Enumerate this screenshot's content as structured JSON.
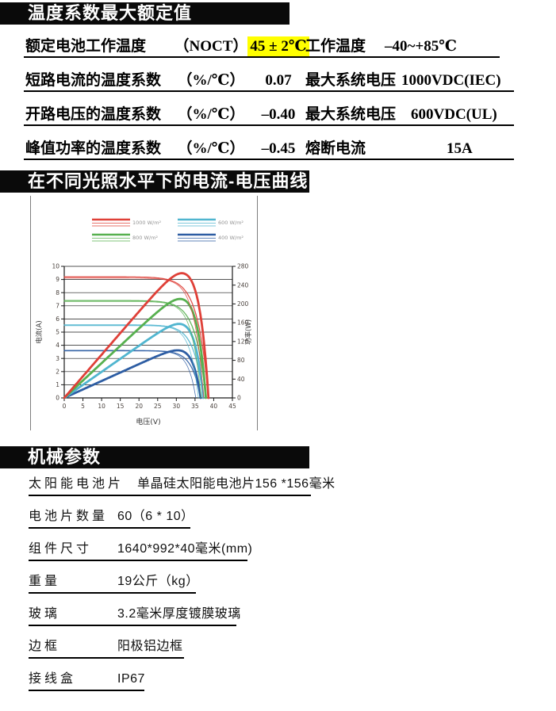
{
  "sections": {
    "ratings": {
      "title": "温度系数最大额定值",
      "rows": [
        {
          "label": "额定电池工作温度",
          "unit": "（NOCT）",
          "value": "45 ± 2℃",
          "highlight": true,
          "label2": "工作温度",
          "value2": "–40~+85℃"
        },
        {
          "label": "短路电流的温度系数",
          "unit": "（%/℃）",
          "value": "0.07",
          "highlight": false,
          "label2": "最大系统电压",
          "value2": "1000VDC(IEC)"
        },
        {
          "label": "开路电压的温度系数",
          "unit": "（%/℃）",
          "value": "–0.40",
          "highlight": false,
          "label2": "最大系统电压",
          "value2": "600VDC(UL)"
        },
        {
          "label": "峰值功率的温度系数",
          "unit": "（%/℃）",
          "value": "–0.45",
          "highlight": false,
          "label2": "熔断电流",
          "value2": "15A"
        }
      ],
      "highlight_color": "#ffff00"
    },
    "curves": {
      "title": "在不同光照水平下的电流-电压曲线"
    },
    "mechanical": {
      "title": "机械参数",
      "rows": [
        {
          "label": "太阳能电池片",
          "value": "单晶硅太阳能电池片156 *156毫米"
        },
        {
          "label": "电池片数量",
          "value": "60（6 * 10）"
        },
        {
          "label": "组件尺寸",
          "value": "1640*992*40毫米(mm)"
        },
        {
          "label": "重量",
          "value": "19公斤（kg）"
        },
        {
          "label": "玻璃",
          "value": "3.2毫米厚度镀膜玻璃"
        },
        {
          "label": "边框",
          "value": "阳极铝边框"
        },
        {
          "label": "接线盒",
          "value": "IP67"
        }
      ]
    }
  },
  "chart_data": {
    "type": "line",
    "title": "在不同光照水平下的电流-电压曲线",
    "xlabel": "电压(V)",
    "ylabel_left": "电流(A)",
    "ylabel_right": "功率(W)",
    "xlim": [
      0,
      45
    ],
    "ylim_left": [
      0,
      10
    ],
    "ylim_right": [
      0,
      280
    ],
    "x_ticks": [
      0,
      5,
      10,
      15,
      20,
      25,
      30,
      35,
      40,
      45
    ],
    "y_ticks_left": [
      0,
      1,
      2,
      3,
      4,
      5,
      6,
      7,
      8,
      9,
      10
    ],
    "y_ticks_right": [
      0,
      40,
      80,
      120,
      160,
      200,
      240,
      280
    ],
    "grid": true,
    "legend_position": "top",
    "watts_per_left_unit": 28,
    "series": [
      {
        "name": "1000 W/m²",
        "color": "#df4038",
        "isc": 9.2,
        "voc": 38.6,
        "vmp": 30.7,
        "pmax": 264,
        "a": 2.87
      },
      {
        "name": "800 W/m²",
        "color": "#57b04f",
        "isc": 7.4,
        "voc": 37.9,
        "vmp": 30.3,
        "pmax": 210,
        "a": 2.76
      },
      {
        "name": "600 W/m²",
        "color": "#50b5cf",
        "isc": 5.55,
        "voc": 37.2,
        "vmp": 30.0,
        "pmax": 157,
        "a": 2.52
      },
      {
        "name": "400 W/m²",
        "color": "#2d5da3",
        "isc": 3.6,
        "voc": 36.5,
        "vmp": 29.5,
        "pmax": 101,
        "a": 2.35
      }
    ],
    "tick_label_color": "#4a423d",
    "legend_text_color": "#949494",
    "grid_color": "#1a1a1a"
  }
}
